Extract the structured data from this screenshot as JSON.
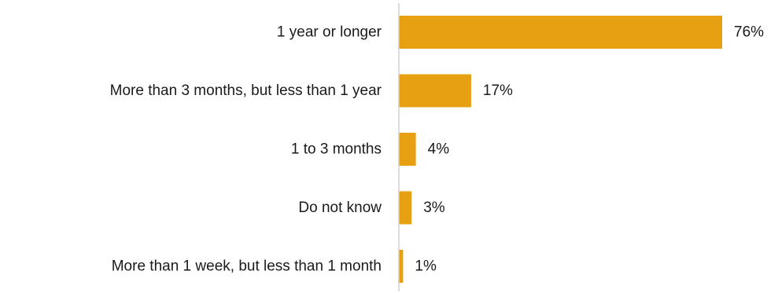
{
  "chart_data": {
    "type": "bar",
    "orientation": "horizontal",
    "categories": [
      "1 year or longer",
      "More than 3 months, but less than 1 year",
      "1 to 3 months",
      "Do not know",
      "More than 1 week, but less than 1 month"
    ],
    "values": [
      76,
      17,
      4,
      3,
      1
    ],
    "value_labels": [
      "76%",
      "17%",
      "4%",
      "3%",
      "1%"
    ],
    "unit": "%",
    "xlim": [
      0,
      76
    ],
    "grid": false,
    "legend": "none",
    "bar_color": "#E8A013",
    "axis_color": "#d0d0d0"
  }
}
